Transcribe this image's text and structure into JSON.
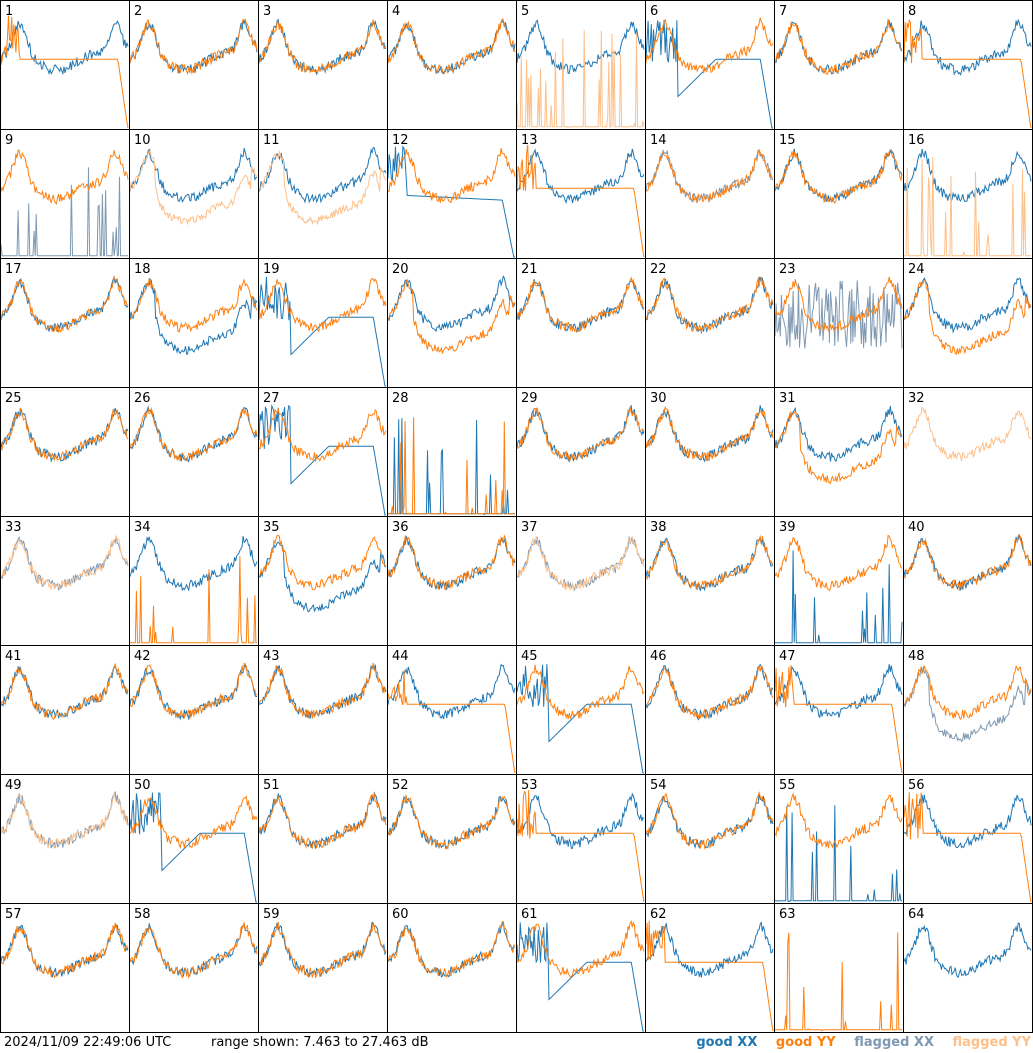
{
  "footer": {
    "timestamp": "2024/11/09 22:49:06 UTC",
    "range": "range shown: 7.463 to 27.463 dB"
  },
  "legend": [
    {
      "label": "good XX",
      "color": "#1f77b4"
    },
    {
      "label": "good YY",
      "color": "#ff7f0e"
    },
    {
      "label": "flagged XX",
      "color": "#7f99b2"
    },
    {
      "label": "flagged YY",
      "color": "#fec08a"
    }
  ],
  "colors": {
    "good_xx": "#1f77b4",
    "good_yy": "#ff7f0e",
    "flagged_xx": "#7f99b2",
    "flagged_yy": "#fec08a",
    "grid": "#000000"
  },
  "chart_data": {
    "type": "line",
    "layout": "8x8 small multiples",
    "y_range_db": [
      7.463,
      27.463
    ],
    "panels": [
      {
        "n": 1,
        "xx": "A",
        "yy": "Ydrop",
        "yyStatus": "good",
        "xxStatus": "good"
      },
      {
        "n": 2,
        "xx": "A",
        "yy": "A",
        "xxStatus": "good",
        "yyStatus": "good"
      },
      {
        "n": 3,
        "xx": "A",
        "yy": "A",
        "xxStatus": "good",
        "yyStatus": "good"
      },
      {
        "n": 4,
        "xx": "A",
        "yy": "A",
        "xxStatus": "good",
        "yyStatus": "good"
      },
      {
        "n": 5,
        "xx": "A",
        "yy": "spikes",
        "xxStatus": "good",
        "yyStatus": "flagged"
      },
      {
        "n": 6,
        "xx": "dip",
        "yy": "A",
        "xxStatus": "good",
        "yyStatus": "good"
      },
      {
        "n": 7,
        "xx": "A",
        "yy": "A",
        "xxStatus": "good",
        "yyStatus": "good"
      },
      {
        "n": 8,
        "xx": "A",
        "yy": "Ydrop",
        "xxStatus": "good",
        "yyStatus": "good"
      },
      {
        "n": 9,
        "xx": "spikes",
        "yy": "A",
        "xxStatus": "flagged",
        "yyStatus": "good"
      },
      {
        "n": 10,
        "xx": "A",
        "yy": "low",
        "xxStatus": "good",
        "yyStatus": "flagged"
      },
      {
        "n": 11,
        "xx": "A",
        "yy": "low",
        "xxStatus": "good",
        "yyStatus": "flagged"
      },
      {
        "n": 12,
        "xx": "drop",
        "yy": "A",
        "xxStatus": "good",
        "yyStatus": "good"
      },
      {
        "n": 13,
        "xx": "A",
        "yy": "Ydrop",
        "xxStatus": "good",
        "yyStatus": "good"
      },
      {
        "n": 14,
        "xx": "A",
        "yy": "A",
        "xxStatus": "flagged",
        "yyStatus": "good"
      },
      {
        "n": 15,
        "xx": "A",
        "yy": "A",
        "xxStatus": "good",
        "yyStatus": "good"
      },
      {
        "n": 16,
        "xx": "A",
        "yy": "spikes",
        "xxStatus": "good",
        "yyStatus": "flagged"
      },
      {
        "n": 17,
        "xx": "A",
        "yy": "A",
        "xxStatus": "good",
        "yyStatus": "good"
      },
      {
        "n": 18,
        "xx": "low",
        "yy": "A",
        "xxStatus": "good",
        "yyStatus": "good"
      },
      {
        "n": 19,
        "xx": "dip",
        "yy": "A",
        "xxStatus": "good",
        "yyStatus": "good"
      },
      {
        "n": 20,
        "xx": "A",
        "yy": "low",
        "xxStatus": "good",
        "yyStatus": "good"
      },
      {
        "n": 21,
        "xx": "A",
        "yy": "A",
        "xxStatus": "good",
        "yyStatus": "good"
      },
      {
        "n": 22,
        "xx": "A",
        "yy": "A",
        "xxStatus": "good",
        "yyStatus": "good"
      },
      {
        "n": 23,
        "xx": "noise",
        "yy": "A",
        "xxStatus": "flagged",
        "yyStatus": "good"
      },
      {
        "n": 24,
        "xx": "A",
        "yy": "low",
        "xxStatus": "good",
        "yyStatus": "good"
      },
      {
        "n": 25,
        "xx": "A",
        "yy": "A",
        "xxStatus": "good",
        "yyStatus": "good"
      },
      {
        "n": 26,
        "xx": "A",
        "yy": "A",
        "xxStatus": "good",
        "yyStatus": "good"
      },
      {
        "n": 27,
        "xx": "dip",
        "yy": "A",
        "xxStatus": "good",
        "yyStatus": "good"
      },
      {
        "n": 28,
        "xx": "spikes",
        "yy": "spikes",
        "xxStatus": "good",
        "yyStatus": "good"
      },
      {
        "n": 29,
        "xx": "A",
        "yy": "A",
        "xxStatus": "good",
        "yyStatus": "good"
      },
      {
        "n": 30,
        "xx": "A",
        "yy": "A",
        "xxStatus": "good",
        "yyStatus": "good"
      },
      {
        "n": 31,
        "xx": "A",
        "yy": "low",
        "xxStatus": "good",
        "yyStatus": "good"
      },
      {
        "n": 32,
        "xx": "none",
        "yy": "A",
        "xxStatus": "flagged",
        "yyStatus": "flagged"
      },
      {
        "n": 33,
        "xx": "A",
        "yy": "A",
        "xxStatus": "flagged",
        "yyStatus": "flagged"
      },
      {
        "n": 34,
        "xx": "A",
        "yy": "spikes",
        "xxStatus": "good",
        "yyStatus": "good"
      },
      {
        "n": 35,
        "xx": "low",
        "yy": "A",
        "xxStatus": "good",
        "yyStatus": "good"
      },
      {
        "n": 36,
        "xx": "A",
        "yy": "A",
        "xxStatus": "good",
        "yyStatus": "good"
      },
      {
        "n": 37,
        "xx": "A",
        "yy": "A",
        "xxStatus": "flagged",
        "yyStatus": "flagged"
      },
      {
        "n": 38,
        "xx": "A",
        "yy": "A",
        "xxStatus": "good",
        "yyStatus": "good"
      },
      {
        "n": 39,
        "xx": "spikes",
        "yy": "A",
        "xxStatus": "good",
        "yyStatus": "good"
      },
      {
        "n": 40,
        "xx": "A",
        "yy": "A",
        "xxStatus": "good",
        "yyStatus": "good"
      },
      {
        "n": 41,
        "xx": "A",
        "yy": "A",
        "xxStatus": "good",
        "yyStatus": "good"
      },
      {
        "n": 42,
        "xx": "A",
        "yy": "A",
        "xxStatus": "good",
        "yyStatus": "good"
      },
      {
        "n": 43,
        "xx": "A",
        "yy": "A",
        "xxStatus": "good",
        "yyStatus": "good"
      },
      {
        "n": 44,
        "xx": "A",
        "yy": "Ydrop",
        "xxStatus": "good",
        "yyStatus": "good"
      },
      {
        "n": 45,
        "xx": "dip",
        "yy": "A",
        "xxStatus": "good",
        "yyStatus": "good"
      },
      {
        "n": 46,
        "xx": "A",
        "yy": "A",
        "xxStatus": "good",
        "yyStatus": "good"
      },
      {
        "n": 47,
        "xx": "A",
        "yy": "Ydrop",
        "xxStatus": "good",
        "yyStatus": "good"
      },
      {
        "n": 48,
        "xx": "low",
        "yy": "A",
        "xxStatus": "flagged",
        "yyStatus": "good"
      },
      {
        "n": 49,
        "xx": "A",
        "yy": "A",
        "xxStatus": "flagged",
        "yyStatus": "flagged"
      },
      {
        "n": 50,
        "xx": "dip",
        "yy": "A",
        "xxStatus": "good",
        "yyStatus": "good"
      },
      {
        "n": 51,
        "xx": "A",
        "yy": "A",
        "xxStatus": "good",
        "yyStatus": "good"
      },
      {
        "n": 52,
        "xx": "A",
        "yy": "A",
        "xxStatus": "good",
        "yyStatus": "good"
      },
      {
        "n": 53,
        "xx": "A",
        "yy": "Ydrop",
        "xxStatus": "good",
        "yyStatus": "good"
      },
      {
        "n": 54,
        "xx": "A",
        "yy": "A",
        "xxStatus": "good",
        "yyStatus": "good"
      },
      {
        "n": 55,
        "xx": "spikes",
        "yy": "A",
        "xxStatus": "good",
        "yyStatus": "good"
      },
      {
        "n": 56,
        "xx": "A",
        "yy": "Ydrop",
        "xxStatus": "good",
        "yyStatus": "good"
      },
      {
        "n": 57,
        "xx": "A",
        "yy": "A",
        "xxStatus": "good",
        "yyStatus": "good"
      },
      {
        "n": 58,
        "xx": "A",
        "yy": "A",
        "xxStatus": "good",
        "yyStatus": "good"
      },
      {
        "n": 59,
        "xx": "A",
        "yy": "A",
        "xxStatus": "good",
        "yyStatus": "good"
      },
      {
        "n": 60,
        "xx": "A",
        "yy": "A",
        "xxStatus": "good",
        "yyStatus": "good"
      },
      {
        "n": 61,
        "xx": "dip",
        "yy": "A",
        "xxStatus": "good",
        "yyStatus": "good"
      },
      {
        "n": 62,
        "xx": "A",
        "yy": "Ydrop",
        "xxStatus": "good",
        "yyStatus": "good"
      },
      {
        "n": 63,
        "xx": "none",
        "yy": "spikes",
        "xxStatus": "good",
        "yyStatus": "good"
      },
      {
        "n": 64,
        "xx": "A",
        "yy": "none",
        "xxStatus": "good",
        "yyStatus": "good"
      }
    ]
  }
}
